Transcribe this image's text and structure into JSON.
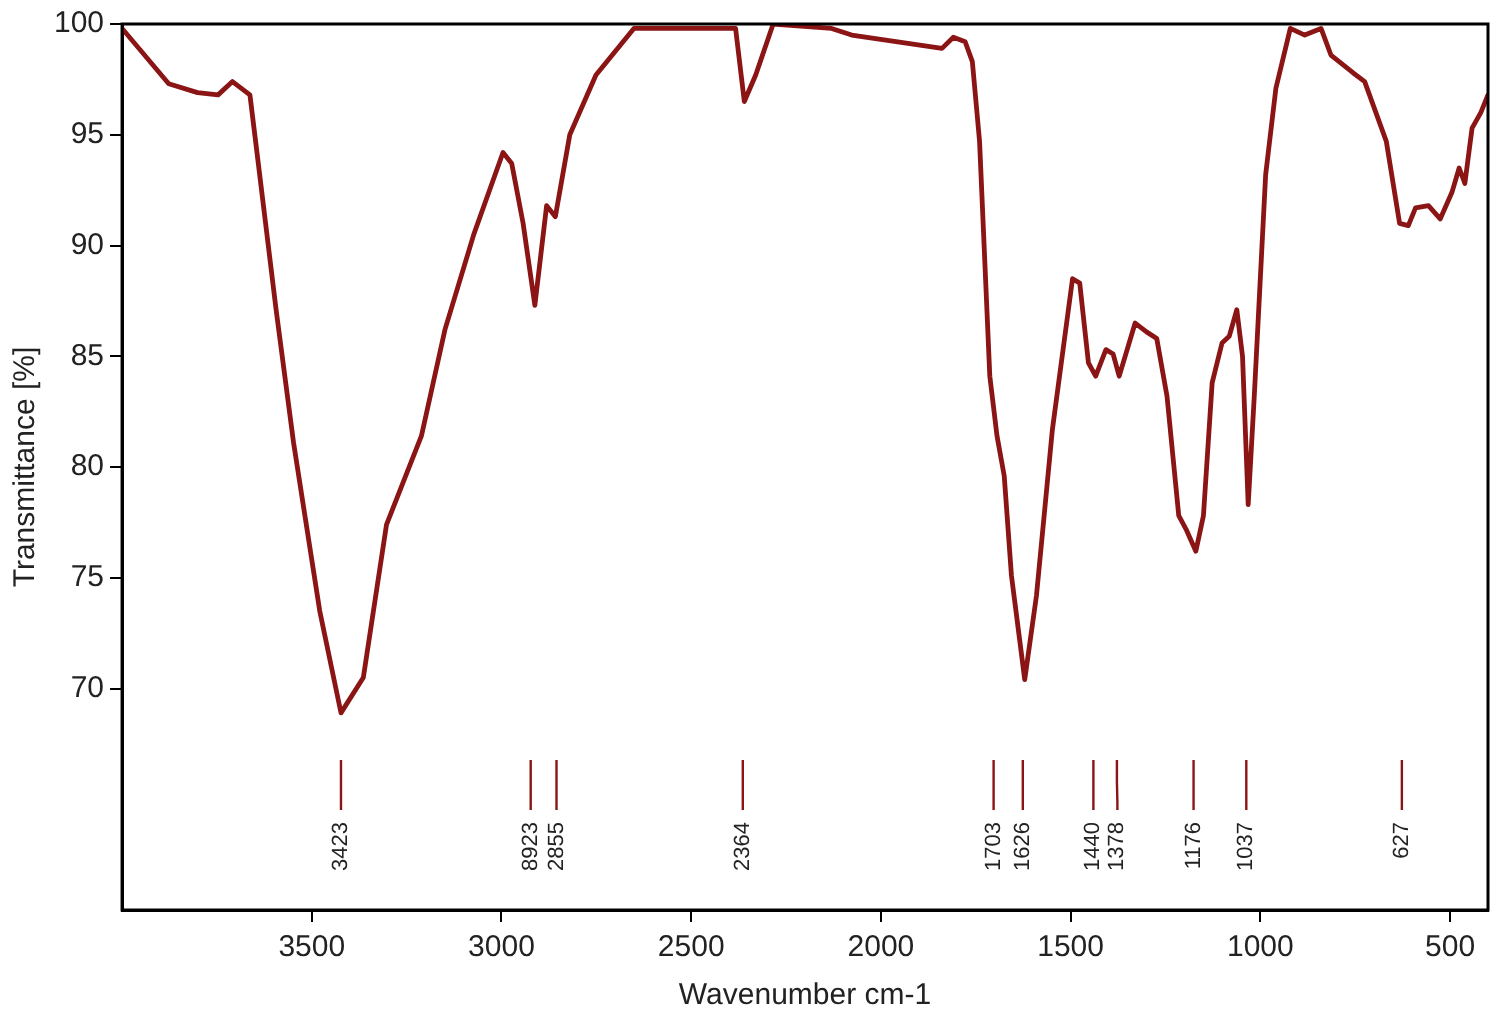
{
  "chart_data": {
    "type": "line",
    "xlabel": "Wavenumber cm-1",
    "ylabel": "Transmittance [%]",
    "xlim": [
      4000,
      400
    ],
    "xticks": [
      3500,
      3000,
      2500,
      2000,
      1500,
      1000,
      500
    ],
    "ylim": [
      60,
      100
    ],
    "yticks": [
      70,
      75,
      80,
      85,
      90,
      95,
      100
    ],
    "x": [
      4000,
      3877,
      3801,
      3747,
      3709,
      3663,
      3648,
      3594,
      3548,
      3479,
      3423,
      3364,
      3303,
      3211,
      3149,
      3073,
      2996,
      2973,
      2943,
      2912,
      2881,
      2858,
      2820,
      2751,
      2651,
      2383,
      2360,
      2330,
      2284,
      2130,
      2077,
      1839,
      1809,
      1778,
      1759,
      1740,
      1713,
      1694,
      1675,
      1656,
      1621,
      1590,
      1548,
      1495,
      1476,
      1453,
      1434,
      1407,
      1388,
      1372,
      1330,
      1300,
      1273,
      1246,
      1215,
      1196,
      1170,
      1150,
      1127,
      1101,
      1082,
      1062,
      1047,
      1032,
      1016,
      986,
      959,
      921,
      883,
      840,
      814,
      756,
      725,
      668,
      633,
      610,
      591,
      557,
      526,
      495,
      476,
      461,
      442,
      419,
      400
    ],
    "series": [
      {
        "color": "#8b1414",
        "values": [
          99.8,
          97.3,
          96.9,
          96.8,
          97.4,
          96.8,
          94.7,
          87.1,
          81.1,
          73.5,
          68.9,
          70.5,
          77.4,
          81.4,
          86.2,
          90.5,
          94.2,
          93.7,
          91.0,
          87.3,
          91.8,
          91.3,
          95.0,
          97.7,
          99.8,
          99.8,
          96.5,
          97.7,
          100,
          99.8,
          99.5,
          98.9,
          99.4,
          99.2,
          98.3,
          94.7,
          84.1,
          81.4,
          79.6,
          75.1,
          70.4,
          74.2,
          81.7,
          88.5,
          88.3,
          84.7,
          84.1,
          85.3,
          85.1,
          84.1,
          86.5,
          86.1,
          85.8,
          83.2,
          77.8,
          77.2,
          76.2,
          77.8,
          83.8,
          85.6,
          85.9,
          87.1,
          85.0,
          78.3,
          83.2,
          93.2,
          97.1,
          99.8,
          99.5,
          99.8,
          98.6,
          97.8,
          97.4,
          94.7,
          91.0,
          90.9,
          91.7,
          91.8,
          91.2,
          92.4,
          93.5,
          92.8,
          95.3,
          96.0,
          96.8
        ]
      }
    ],
    "annotations": [
      {
        "text": "3423",
        "x": 3423
      },
      {
        "text": "8923",
        "x": 2923
      },
      {
        "text": "2855",
        "x": 2855
      },
      {
        "text": "2364",
        "x": 2364
      },
      {
        "text": "1703",
        "x": 1703
      },
      {
        "text": "1626",
        "x": 1626
      },
      {
        "text": "1440",
        "x": 1440
      },
      {
        "text": "1378",
        "x": 1378
      },
      {
        "text": "1176",
        "x": 1176
      },
      {
        "text": "1037",
        "x": 1037
      },
      {
        "text": "627",
        "x": 627
      }
    ]
  }
}
